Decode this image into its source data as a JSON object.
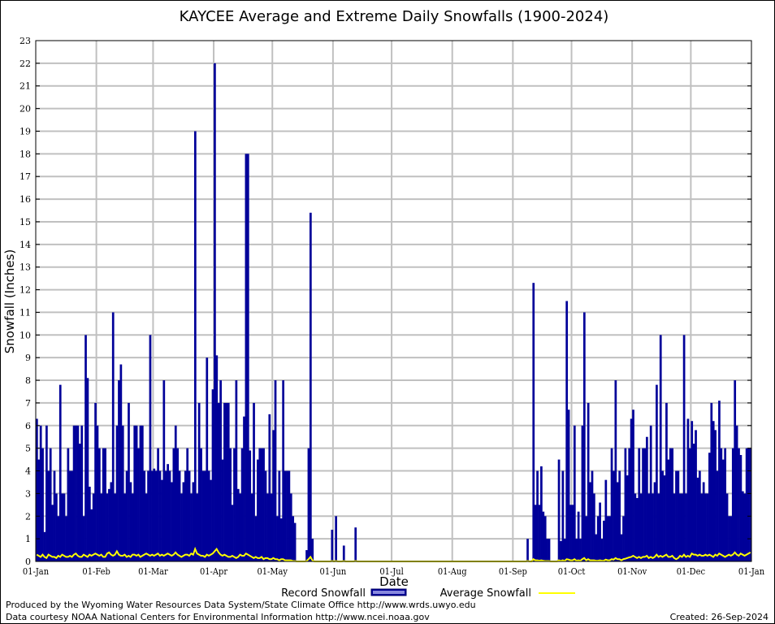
{
  "chart_data": {
    "type": "bar",
    "title": "KAYCEE Average and Extreme Daily Snowfalls (1900-2024)",
    "xlabel": "Date",
    "ylabel": "Snowfall (Inches)",
    "ylim": [
      0,
      23
    ],
    "yticks": [
      0,
      1,
      2,
      3,
      4,
      5,
      6,
      7,
      8,
      9,
      10,
      11,
      12,
      13,
      14,
      15,
      16,
      17,
      18,
      19,
      20,
      21,
      22,
      23
    ],
    "xtick_labels": [
      "01-Jan",
      "01-Feb",
      "01-Mar",
      "01-Apr",
      "01-May",
      "01-Jun",
      "01-Jul",
      "01-Aug",
      "01-Sep",
      "01-Oct",
      "01-Nov",
      "01-Dec",
      "01-Jan"
    ],
    "month_lengths": [
      31,
      29,
      31,
      30,
      31,
      30,
      31,
      31,
      30,
      31,
      30,
      31
    ],
    "grid": true,
    "legend_placement": "bottom",
    "series": [
      {
        "name": "Record Snowfall",
        "color": "#000099",
        "monthly_values": [
          [
            6.3,
            4.5,
            6,
            5,
            1.3,
            6,
            4,
            5,
            2.5,
            4,
            3,
            2,
            7.8,
            3,
            3,
            2,
            5,
            4,
            4,
            6,
            6,
            6,
            5.2,
            6,
            2,
            10,
            8.1,
            3.3,
            2.3,
            3,
            7
          ],
          [
            6,
            5,
            3,
            5,
            5,
            3,
            3.2,
            3.5,
            11,
            3,
            6,
            8,
            8.7,
            6,
            3,
            4,
            7,
            3.5,
            3,
            6,
            6,
            5,
            6,
            6,
            4,
            3,
            4,
            10,
            4
          ],
          [
            4.1,
            4,
            5,
            4,
            3.6,
            8,
            4,
            4.3,
            4,
            3.5,
            5,
            6,
            5,
            4,
            3,
            3.5,
            4,
            5,
            4,
            3,
            3.5,
            19,
            3,
            7,
            5,
            4,
            4,
            9,
            4,
            3.6,
            7.6
          ],
          [
            22,
            9.1,
            7,
            8,
            4.5,
            7,
            7,
            7,
            5,
            2.5,
            5,
            8,
            3.2,
            3,
            5,
            6.4,
            18,
            18,
            4.9,
            3,
            7,
            2,
            4.5,
            5,
            5,
            5,
            4,
            3,
            6.5,
            3
          ],
          [
            5.8,
            8,
            2,
            4,
            1.9,
            8,
            4,
            4,
            4,
            3,
            2,
            1.7,
            0,
            0,
            0,
            0,
            0,
            0.5,
            5,
            15.4,
            1,
            0,
            0,
            0,
            0,
            0,
            0,
            0,
            0,
            0,
            1.4
          ],
          [
            0,
            2,
            0,
            0,
            0,
            0.7,
            0,
            0,
            0,
            0,
            0,
            1.5,
            0,
            0,
            0,
            0,
            0,
            0,
            0,
            0,
            0,
            0,
            0,
            0,
            0,
            0,
            0,
            0,
            0,
            0
          ],
          [
            0,
            0,
            0,
            0,
            0,
            0,
            0,
            0,
            0,
            0,
            0,
            0,
            0,
            0,
            0,
            0,
            0,
            0,
            0,
            0,
            0,
            0,
            0,
            0,
            0,
            0,
            0,
            0,
            0,
            0,
            0
          ],
          [
            0,
            0,
            0,
            0,
            0,
            0,
            0,
            0,
            0,
            0,
            0,
            0,
            0,
            0,
            0,
            0,
            0,
            0,
            0,
            0,
            0,
            0,
            0,
            0,
            0,
            0,
            0,
            0,
            0,
            0,
            0
          ],
          [
            0,
            0,
            0,
            0,
            0,
            0,
            0,
            1,
            0,
            0,
            12.3,
            2.5,
            4,
            2.5,
            4.2,
            2.2,
            2,
            1,
            1,
            0,
            0,
            0,
            0,
            4.5,
            0.9,
            4,
            1,
            11.5,
            6.7,
            2.5
          ],
          [
            2.5,
            6,
            1,
            2.2,
            1,
            6,
            11,
            2,
            7,
            3.5,
            4,
            3,
            1.2,
            2,
            2.6,
            1,
            1.8,
            3.6,
            2,
            2,
            5,
            4,
            8,
            3.5,
            4,
            1.2,
            2,
            5,
            3.8,
            5,
            6.3
          ],
          [
            6.7,
            3,
            2.8,
            5,
            3,
            5,
            5,
            5.5,
            3,
            6,
            3,
            3.5,
            7.8,
            3,
            10,
            4,
            3.8,
            7,
            4.5,
            5,
            5,
            3,
            4,
            4,
            3,
            3,
            10,
            3,
            6.3,
            5
          ],
          [
            6.2,
            5.2,
            5.8,
            3.7,
            4,
            3,
            3.5,
            3,
            3,
            4.8,
            7,
            6.2,
            5.8,
            4,
            7.1,
            5,
            4.5,
            5,
            3,
            2,
            2,
            5,
            8,
            6,
            5,
            4.7,
            3.1,
            3,
            5,
            5,
            5
          ]
        ]
      },
      {
        "name": "Average Snowfall",
        "color": "#ffff00",
        "monthly_values": [
          [
            0.3,
            0.25,
            0.2,
            0.3,
            0.2,
            0.15,
            0.3,
            0.25,
            0.2,
            0.2,
            0.15,
            0.25,
            0.2,
            0.3,
            0.25,
            0.2,
            0.2,
            0.25,
            0.2,
            0.3,
            0.35,
            0.25,
            0.2,
            0.2,
            0.3,
            0.25,
            0.2,
            0.3,
            0.25,
            0.3,
            0.35
          ],
          [
            0.3,
            0.25,
            0.3,
            0.2,
            0.2,
            0.35,
            0.4,
            0.3,
            0.25,
            0.3,
            0.45,
            0.3,
            0.25,
            0.25,
            0.3,
            0.2,
            0.25,
            0.2,
            0.3,
            0.3,
            0.25,
            0.3,
            0.2,
            0.25,
            0.3,
            0.35,
            0.3,
            0.25,
            0.3
          ],
          [
            0.25,
            0.3,
            0.35,
            0.25,
            0.3,
            0.25,
            0.3,
            0.35,
            0.3,
            0.25,
            0.3,
            0.4,
            0.3,
            0.25,
            0.2,
            0.25,
            0.3,
            0.3,
            0.25,
            0.35,
            0.3,
            0.55,
            0.35,
            0.3,
            0.25,
            0.25,
            0.2,
            0.3,
            0.25,
            0.3,
            0.35
          ],
          [
            0.45,
            0.55,
            0.4,
            0.3,
            0.25,
            0.3,
            0.25,
            0.2,
            0.2,
            0.25,
            0.2,
            0.15,
            0.2,
            0.3,
            0.25,
            0.25,
            0.35,
            0.3,
            0.25,
            0.2,
            0.15,
            0.2,
            0.15,
            0.15,
            0.2,
            0.1,
            0.15,
            0.15,
            0.1,
            0.1
          ],
          [
            0.15,
            0.1,
            0.1,
            0.05,
            0.1,
            0.1,
            0.05,
            0.05,
            0.05,
            0.05,
            0.02,
            0.02,
            0,
            0,
            0,
            0,
            0,
            0.02,
            0.1,
            0.2,
            0.05,
            0,
            0,
            0,
            0,
            0,
            0,
            0,
            0,
            0,
            0.02
          ],
          [
            0,
            0.02,
            0,
            0,
            0,
            0.02,
            0,
            0,
            0,
            0,
            0,
            0.02,
            0,
            0,
            0,
            0,
            0,
            0,
            0,
            0,
            0,
            0,
            0,
            0,
            0,
            0,
            0,
            0,
            0,
            0
          ],
          [
            0,
            0,
            0,
            0,
            0,
            0,
            0,
            0,
            0,
            0,
            0,
            0,
            0,
            0,
            0,
            0,
            0,
            0,
            0,
            0,
            0,
            0,
            0,
            0,
            0,
            0,
            0,
            0,
            0,
            0,
            0
          ],
          [
            0,
            0,
            0,
            0,
            0,
            0,
            0,
            0,
            0,
            0,
            0,
            0,
            0,
            0,
            0,
            0,
            0,
            0,
            0,
            0,
            0,
            0,
            0,
            0,
            0,
            0,
            0,
            0,
            0,
            0,
            0
          ],
          [
            0,
            0,
            0,
            0,
            0,
            0,
            0,
            0.02,
            0,
            0,
            0.1,
            0.05,
            0.05,
            0.03,
            0.05,
            0.03,
            0.02,
            0.02,
            0.02,
            0,
            0,
            0,
            0,
            0.05,
            0.02,
            0.05,
            0.02,
            0.1,
            0.08,
            0.05
          ],
          [
            0.05,
            0.1,
            0.03,
            0.05,
            0.03,
            0.1,
            0.15,
            0.05,
            0.1,
            0.05,
            0.05,
            0.05,
            0.03,
            0.03,
            0.05,
            0.03,
            0.03,
            0.08,
            0.05,
            0.05,
            0.1,
            0.08,
            0.15,
            0.1,
            0.1,
            0.05,
            0.1,
            0.12,
            0.15,
            0.18,
            0.2
          ],
          [
            0.25,
            0.2,
            0.15,
            0.2,
            0.15,
            0.2,
            0.2,
            0.25,
            0.15,
            0.2,
            0.15,
            0.2,
            0.3,
            0.2,
            0.25,
            0.2,
            0.25,
            0.3,
            0.2,
            0.2,
            0.25,
            0.15,
            0.1,
            0.15,
            0.25,
            0.2,
            0.3,
            0.2,
            0.25,
            0.2
          ],
          [
            0.35,
            0.3,
            0.3,
            0.25,
            0.3,
            0.25,
            0.25,
            0.3,
            0.25,
            0.3,
            0.25,
            0.2,
            0.3,
            0.25,
            0.35,
            0.3,
            0.25,
            0.2,
            0.25,
            0.3,
            0.25,
            0.3,
            0.4,
            0.3,
            0.25,
            0.35,
            0.3,
            0.25,
            0.3,
            0.35,
            0.4
          ]
        ]
      }
    ],
    "legend": [
      "Record Snowfall",
      "Average Snowfall"
    ]
  },
  "footer": {
    "produced_by": "Produced by the Wyoming Water Resources Data System/State Climate Office http://www.wrds.uwyo.edu",
    "courtesy": "Data courtesy NOAA National Centers for Environmental Information http://www.ncei.noaa.gov",
    "created": "Created:  26-Sep-2024"
  }
}
